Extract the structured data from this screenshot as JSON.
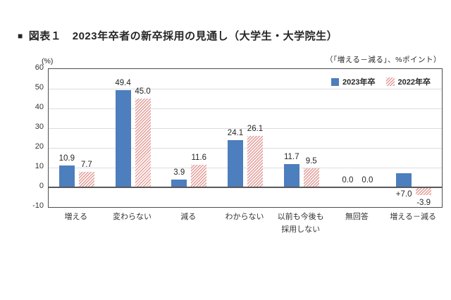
{
  "header": {
    "bullet": "■",
    "title": "図表１　2023年卒者の新卒採用の見通し（大学生・大学院生）"
  },
  "note": "（「増える－減る」、%ポイント）",
  "axis_unit": "(%)",
  "legend": [
    {
      "label": "2023年卒",
      "swatch": "solid"
    },
    {
      "label": "2022年卒",
      "swatch": "hatch"
    }
  ],
  "colors": {
    "series_2023": "#4d7ebd",
    "series_2022_hatch": "#db8b86",
    "series_2022_bg": "#fdf4f3",
    "gridline": "#dcdcdc",
    "axis": "#595959",
    "text": "#262626"
  },
  "chart_data": {
    "type": "bar",
    "title": "図表１　2023年卒者の新卒採用の見通し（大学生・大学院生）",
    "categories": [
      "増える",
      "変わらない",
      "減る",
      "わからない",
      "以前も今後も\n採用しない",
      "無回答",
      "増える－減る"
    ],
    "series": [
      {
        "name": "2023年卒",
        "style": "solid",
        "values": [
          10.9,
          49.4,
          3.9,
          24.1,
          11.7,
          0.0,
          7.0
        ],
        "labels": [
          "10.9",
          "49.4",
          "3.9",
          "24.1",
          "11.7",
          "0.0",
          "+7.0"
        ]
      },
      {
        "name": "2022年卒",
        "style": "hatch",
        "values": [
          7.7,
          45.0,
          11.6,
          26.1,
          9.5,
          0.0,
          -3.9
        ],
        "labels": [
          "7.7",
          "45.0",
          "11.6",
          "26.1",
          "9.5",
          "0.0",
          "-3.9"
        ]
      }
    ],
    "ylabel": "(%)",
    "ylim": [
      -10,
      60
    ],
    "ytick_step": 10,
    "grid": true,
    "legend_position": "top-right-inside",
    "last_category_labels_below_axis": true
  }
}
